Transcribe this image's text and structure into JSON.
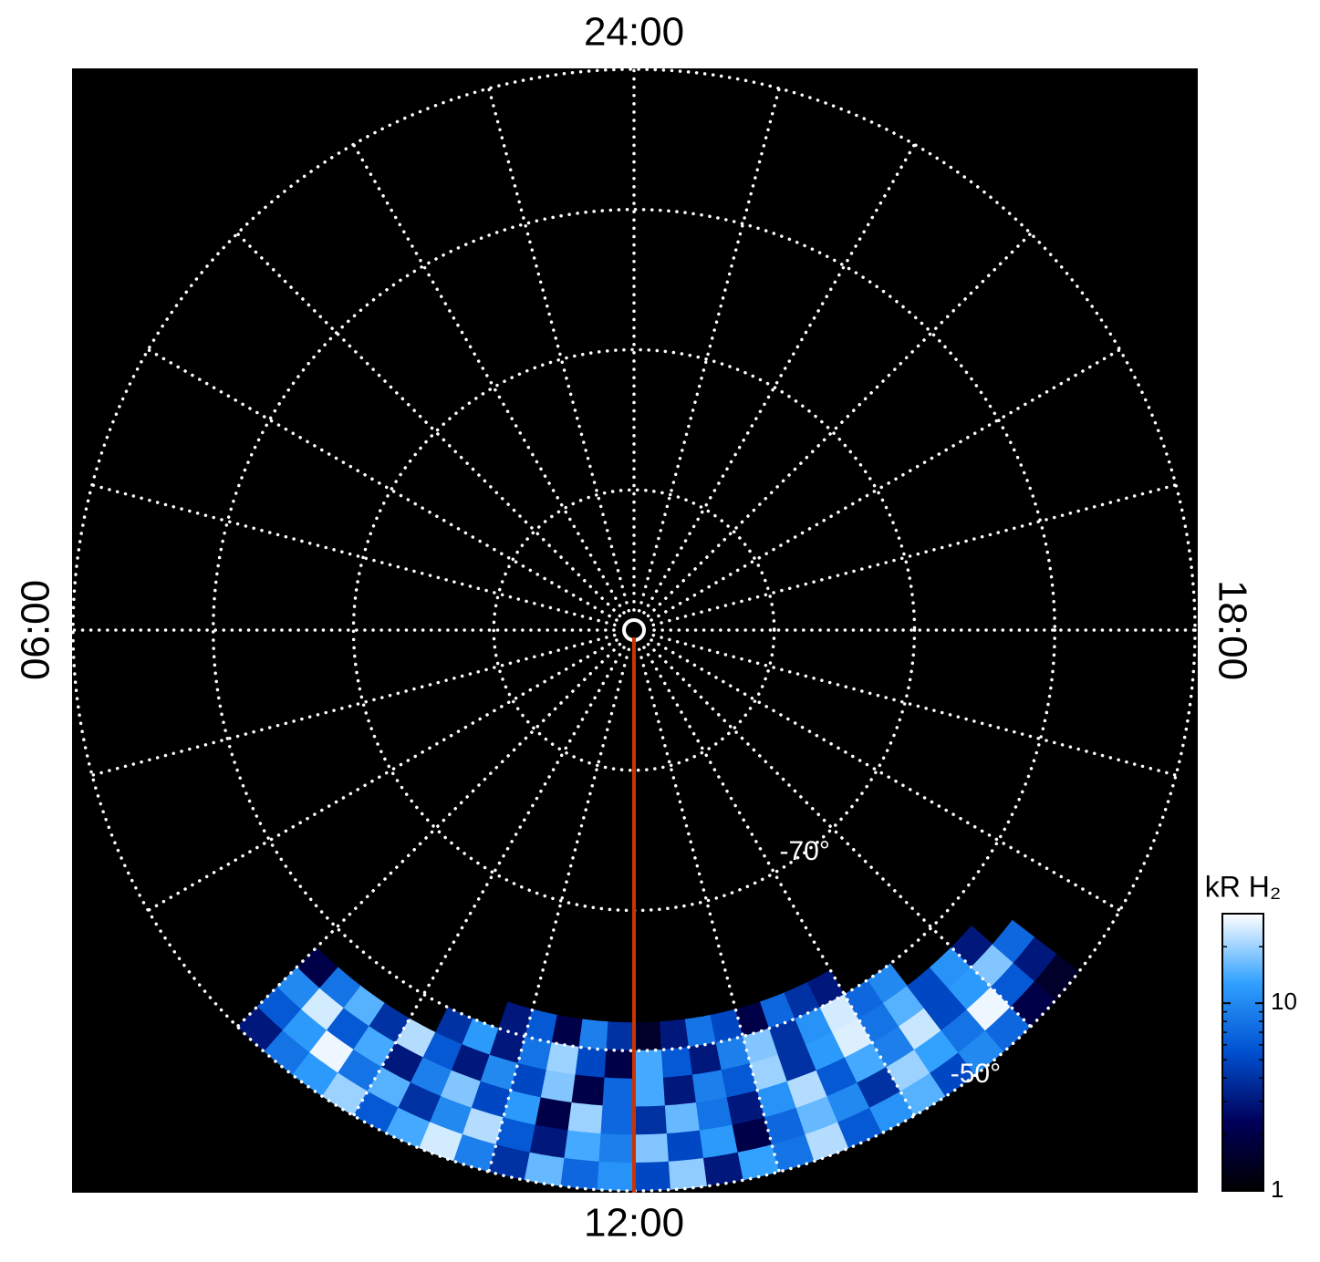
{
  "chart_data": {
    "type": "polar-heatmap",
    "lt_labels": [
      {
        "value": 24,
        "label": "24:00"
      },
      {
        "value": 6,
        "label": "06:00"
      },
      {
        "value": 12,
        "label": "12:00"
      },
      {
        "value": 18,
        "label": "18:00"
      }
    ],
    "lt_lines": [
      0,
      1,
      2,
      3,
      4,
      5,
      6,
      7,
      8,
      9,
      10,
      11,
      12,
      13,
      14,
      15,
      16,
      17,
      18,
      19,
      20,
      21,
      22,
      23
    ],
    "rlim": [
      -90,
      -50
    ],
    "lat_circles": [
      -80,
      -70,
      -60,
      -50
    ],
    "circle_labels": [
      {
        "value": -70,
        "label": "-70°"
      },
      {
        "value": -50,
        "label": "-50°"
      }
    ],
    "circle_label_lt": 14.5,
    "highlight_lt": 12,
    "highlight_color": "#cc3300",
    "lt_bins": [
      9,
      9.25,
      9.5,
      9.75,
      10,
      10.25,
      10.5,
      10.75,
      11,
      11.25,
      11.5,
      11.75,
      12,
      12.25,
      12.5,
      12.75,
      13,
      13.25,
      13.5,
      13.75,
      14,
      14.25,
      14.5,
      14.75,
      15,
      15.25,
      15.5
    ],
    "lat_bins": [
      -62,
      -60,
      -58,
      -56,
      -54,
      -52,
      -50
    ],
    "values": [
      [
        null,
        null,
        null,
        null,
        null,
        null,
        null,
        3,
        6,
        2,
        9,
        4,
        1.5,
        3,
        8,
        5,
        2,
        7,
        4,
        3,
        null,
        null,
        null,
        null,
        null,
        null
      ],
      [
        null,
        null,
        null,
        null,
        null,
        4,
        12,
        3,
        8,
        20,
        5,
        2,
        14,
        6,
        3,
        9,
        18,
        4,
        11,
        25,
        7,
        10,
        null,
        null,
        null,
        null
      ],
      [
        2,
        8,
        15,
        4,
        22,
        6,
        3,
        10,
        5,
        18,
        2,
        7,
        14,
        3,
        9,
        6,
        20,
        4,
        12,
        26,
        8,
        15,
        5,
        11,
        3,
        null
      ],
      [
        10,
        25,
        6,
        14,
        3,
        9,
        18,
        5,
        12,
        2,
        20,
        7,
        4,
        16,
        8,
        3,
        11,
        22,
        6,
        14,
        9,
        24,
        5,
        12,
        18,
        7
      ],
      [
        6,
        12,
        28,
        8,
        15,
        4,
        10,
        22,
        6,
        3,
        14,
        9,
        18,
        5,
        12,
        2,
        7,
        16,
        10,
        4,
        20,
        13,
        8,
        28,
        6,
        3
      ],
      [
        3,
        8,
        12,
        20,
        6,
        14,
        25,
        9,
        4,
        16,
        7,
        11,
        5,
        19,
        3,
        13,
        8,
        22,
        6,
        11,
        15,
        5,
        10,
        7,
        2,
        1.5
      ]
    ],
    "colorbar_title": "kR H₂",
    "clim": [
      1,
      30
    ],
    "clog": true,
    "cticks": [
      1,
      10
    ],
    "cminor_ticks": [
      2,
      3,
      4,
      5,
      6,
      7,
      8,
      9,
      20,
      30
    ],
    "colormap": [
      "#000000",
      "#00005a",
      "#0050d0",
      "#30a0ff",
      "#ffffff"
    ]
  }
}
